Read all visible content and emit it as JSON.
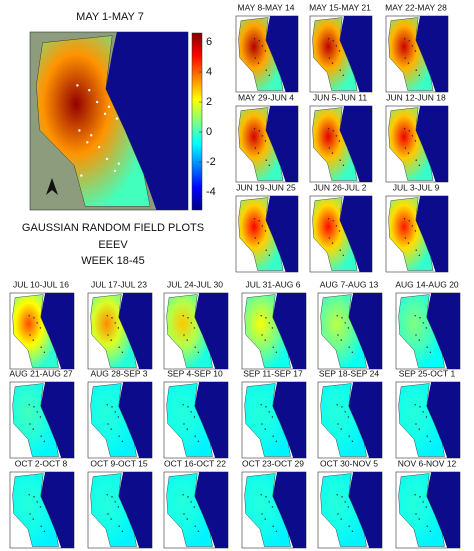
{
  "main_panel": {
    "label": "MAY 1-MAY 7"
  },
  "colorbar": {
    "lim": [
      -5.2,
      6.6
    ],
    "ticks": [
      6,
      4,
      2,
      0,
      -2,
      -4
    ]
  },
  "caption": [
    "GAUSSIAN RANDOM FIELD PLOTS",
    "EEEV",
    "WEEK 18-45"
  ],
  "panels": [
    {
      "label": "MAY 8-MAY 14"
    },
    {
      "label": "MAY 15-MAY 21"
    },
    {
      "label": "MAY 22-MAY 28"
    },
    {
      "label": "MAY 29-JUN 4"
    },
    {
      "label": "JUN 5-JUN 11"
    },
    {
      "label": "JUN 12-JUN 18"
    },
    {
      "label": "JUN 19-JUN 25"
    },
    {
      "label": "JUN 26-JUL 2"
    },
    {
      "label": "JUL 3-JUL 9"
    },
    {
      "label": "JUL 10-JUL 16"
    },
    {
      "label": "JUL 17-JUL 23"
    },
    {
      "label": "JUL 24-JUL 30"
    },
    {
      "label": "JUL 31-AUG 6"
    },
    {
      "label": "AUG 7-AUG 13"
    },
    {
      "label": "AUG 14-AUG 20"
    },
    {
      "label": "AUG 21-AUG 27"
    },
    {
      "label": "AUG 28-SEP 3"
    },
    {
      "label": "SEP 4-SEP 10"
    },
    {
      "label": "SEP 11-SEP 17"
    },
    {
      "label": "SEP 18-SEP 24"
    },
    {
      "label": "SEP 25-OCT 1"
    },
    {
      "label": "OCT 2-OCT 8"
    },
    {
      "label": "OCT 9-OCT 15"
    },
    {
      "label": "OCT 16-OCT 22"
    },
    {
      "label": "OCT 23-OCT 29"
    },
    {
      "label": "OCT 30-NOV 5"
    },
    {
      "label": "NOV 6-NOV 12"
    }
  ]
}
